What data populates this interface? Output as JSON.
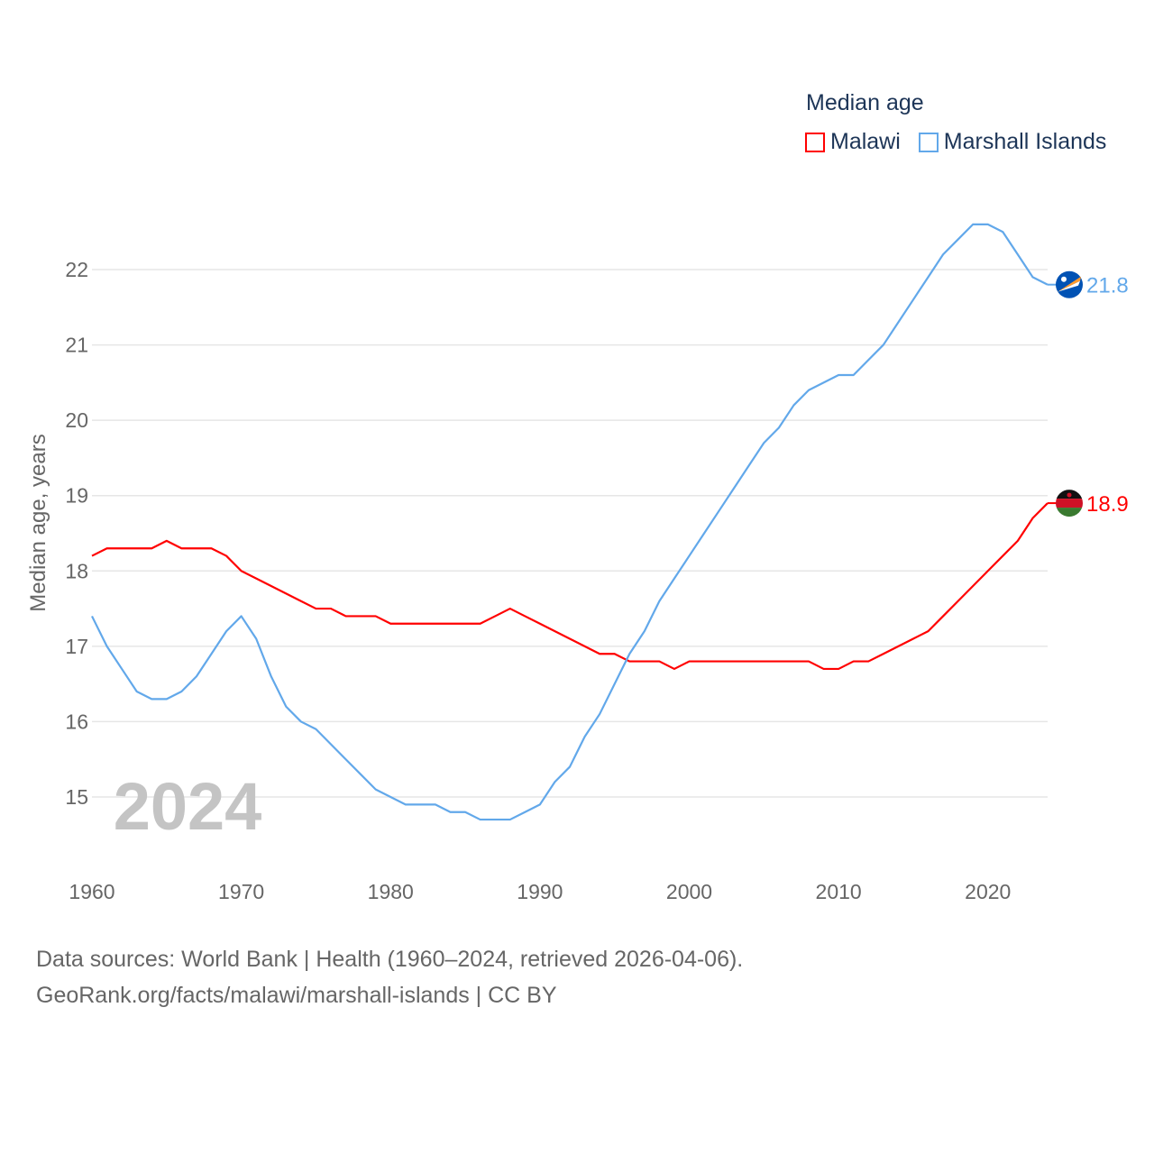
{
  "chart_data": {
    "type": "line",
    "legend_title": "Median age",
    "ylabel": "Median age, years",
    "xlabel": "",
    "ylim": [
      14.2,
      22.8
    ],
    "xlim": [
      1960,
      2024
    ],
    "y_ticks": [
      15,
      16,
      17,
      18,
      19,
      20,
      21,
      22
    ],
    "x_ticks": [
      1960,
      1970,
      1980,
      1990,
      2000,
      2010,
      2020
    ],
    "grid": true,
    "legend_position": "top-right",
    "year_watermark": "2024",
    "x": [
      1960,
      1961,
      1962,
      1963,
      1964,
      1965,
      1966,
      1967,
      1968,
      1969,
      1970,
      1971,
      1972,
      1973,
      1974,
      1975,
      1976,
      1977,
      1978,
      1979,
      1980,
      1981,
      1982,
      1983,
      1984,
      1985,
      1986,
      1987,
      1988,
      1989,
      1990,
      1991,
      1992,
      1993,
      1994,
      1995,
      1996,
      1997,
      1998,
      1999,
      2000,
      2001,
      2002,
      2003,
      2004,
      2005,
      2006,
      2007,
      2008,
      2009,
      2010,
      2011,
      2012,
      2013,
      2014,
      2015,
      2016,
      2017,
      2018,
      2019,
      2020,
      2021,
      2022,
      2023,
      2024
    ],
    "series": [
      {
        "name": "Malawi",
        "color": "#ff0000",
        "end_label": "18.9",
        "values": [
          18.2,
          18.3,
          18.3,
          18.3,
          18.3,
          18.4,
          18.3,
          18.3,
          18.3,
          18.2,
          18.0,
          17.9,
          17.8,
          17.7,
          17.6,
          17.5,
          17.5,
          17.4,
          17.4,
          17.4,
          17.3,
          17.3,
          17.3,
          17.3,
          17.3,
          17.3,
          17.3,
          17.4,
          17.5,
          17.4,
          17.3,
          17.2,
          17.1,
          17.0,
          16.9,
          16.9,
          16.8,
          16.8,
          16.8,
          16.7,
          16.8,
          16.8,
          16.8,
          16.8,
          16.8,
          16.8,
          16.8,
          16.8,
          16.8,
          16.7,
          16.7,
          16.8,
          16.8,
          16.9,
          17.0,
          17.1,
          17.2,
          17.4,
          17.6,
          17.8,
          18.0,
          18.2,
          18.4,
          18.7,
          18.9
        ]
      },
      {
        "name": "Marshall Islands",
        "color": "#62a8ea",
        "end_label": "21.8",
        "values": [
          17.4,
          17.0,
          16.7,
          16.4,
          16.3,
          16.3,
          16.4,
          16.6,
          16.9,
          17.2,
          17.4,
          17.1,
          16.6,
          16.2,
          16.0,
          15.9,
          15.7,
          15.5,
          15.3,
          15.1,
          15.0,
          14.9,
          14.9,
          14.9,
          14.8,
          14.8,
          14.7,
          14.7,
          14.7,
          14.8,
          14.9,
          15.2,
          15.4,
          15.8,
          16.1,
          16.5,
          16.9,
          17.2,
          17.6,
          17.9,
          18.2,
          18.5,
          18.8,
          19.1,
          19.4,
          19.7,
          19.9,
          20.2,
          20.4,
          20.5,
          20.6,
          20.6,
          20.8,
          21.0,
          21.3,
          21.6,
          21.9,
          22.2,
          22.4,
          22.6,
          22.6,
          22.5,
          22.2,
          21.9,
          21.8
        ]
      }
    ]
  },
  "footer": {
    "line1": "Data sources: World Bank | Health (1960–2024, retrieved 2026-04-06).",
    "line2": "GeoRank.org/facts/malawi/marshall-islands | CC BY"
  }
}
